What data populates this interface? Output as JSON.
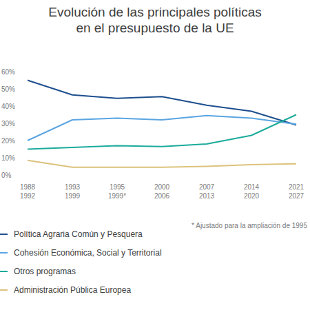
{
  "chart_data": {
    "type": "line",
    "title": "Evolución de las principales políticas\nen el presupuesto de la UE",
    "categories": [
      "1988\n1992",
      "1993\n1999",
      "1995\n1999*",
      "2000\n2006",
      "2007\n2013",
      "2014\n2020",
      "2021\n2027"
    ],
    "series": [
      {
        "name": "Política Agraria Común y Pesquera",
        "color": "#1d4f8e",
        "values": [
          55,
          46.5,
          44.5,
          45.5,
          40.5,
          37,
          29
        ]
      },
      {
        "name": "Cohesión Económica, Social y Territorial",
        "color": "#5aa5e2",
        "values": [
          20,
          32,
          33,
          32,
          34.5,
          33,
          29.5
        ]
      },
      {
        "name": "Otros programas",
        "color": "#1bab9b",
        "values": [
          15,
          16,
          17,
          16.5,
          18,
          23,
          35
        ]
      },
      {
        "name": "Administración Pública Europea",
        "color": "#dcc27c",
        "values": [
          8.5,
          4.5,
          4.5,
          4.5,
          5,
          6,
          6.5
        ]
      }
    ],
    "ylim": [
      0,
      60
    ],
    "yticks": [
      {
        "value": 0,
        "label": "0%"
      },
      {
        "value": 10,
        "label": "10%"
      },
      {
        "value": 20,
        "label": "20%"
      },
      {
        "value": 30,
        "label": "30%"
      },
      {
        "value": 40,
        "label": "40%"
      },
      {
        "value": 50,
        "label": "50%"
      },
      {
        "value": 60,
        "label": "60%"
      }
    ],
    "grid": false,
    "legend": "bottom",
    "annotations": [
      "* Ajustado para la ampliación de 1995"
    ]
  }
}
